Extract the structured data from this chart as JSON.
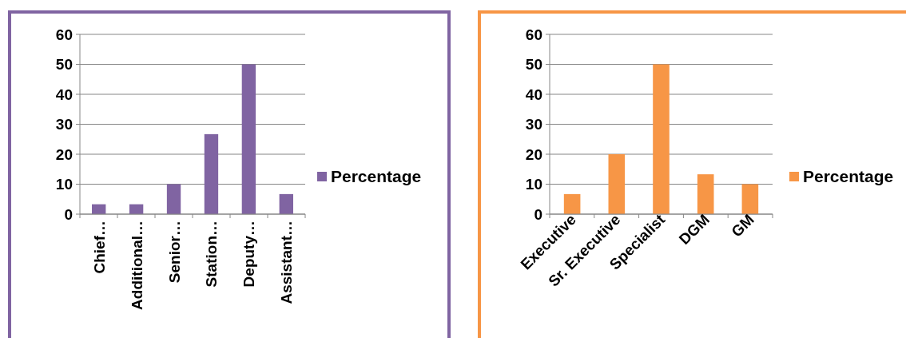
{
  "chart_data": [
    {
      "type": "bar",
      "categories": [
        "Chief…",
        "Additional…",
        "Senior…",
        "Station…",
        "Deputy…",
        "Assistant…"
      ],
      "series": [
        {
          "name": "Percentage",
          "color": "#8064a2",
          "values": [
            3.3,
            3.3,
            10,
            26.7,
            50,
            6.7
          ]
        }
      ],
      "ylim": [
        0,
        60
      ],
      "yticks": [
        0,
        10,
        20,
        30,
        40,
        50,
        60
      ],
      "grid": "y",
      "legend": "right"
    },
    {
      "type": "bar",
      "categories": [
        "Executive",
        "Sr. Executive",
        "Specialist",
        "DGM",
        "GM"
      ],
      "series": [
        {
          "name": "Percentage",
          "color": "#f79646",
          "values": [
            6.7,
            20,
            50,
            13.3,
            10
          ]
        }
      ],
      "ylim": [
        0,
        60
      ],
      "yticks": [
        0,
        10,
        20,
        30,
        40,
        50,
        60
      ],
      "grid": "y",
      "legend": "right"
    }
  ]
}
